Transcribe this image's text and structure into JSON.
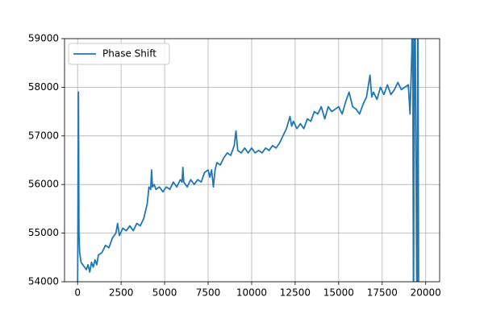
{
  "chart_data": {
    "type": "line",
    "x": [
      0,
      20,
      50,
      80,
      120,
      200,
      300,
      400,
      500,
      600,
      700,
      800,
      900,
      1000,
      1100,
      1200,
      1400,
      1600,
      1800,
      2000,
      2200,
      2300,
      2400,
      2600,
      2800,
      3000,
      3200,
      3400,
      3600,
      3800,
      4000,
      4100,
      4200,
      4250,
      4300,
      4400,
      4500,
      4700,
      4900,
      5100,
      5300,
      5500,
      5700,
      5900,
      6000,
      6050,
      6100,
      6300,
      6500,
      6700,
      6900,
      7100,
      7300,
      7500,
      7600,
      7700,
      7800,
      7900,
      8000,
      8200,
      8400,
      8600,
      8800,
      9000,
      9100,
      9200,
      9400,
      9600,
      9800,
      10000,
      10200,
      10400,
      10600,
      10800,
      11000,
      11200,
      11400,
      11600,
      11800,
      12000,
      12200,
      12300,
      12400,
      12600,
      12800,
      13000,
      13200,
      13400,
      13600,
      13800,
      14000,
      14200,
      14400,
      14600,
      14800,
      15000,
      15200,
      15400,
      15600,
      15800,
      16000,
      16200,
      16400,
      16600,
      16800,
      16900,
      17000,
      17200,
      17400,
      17600,
      17800,
      18000,
      18200,
      18400,
      18600,
      18800,
      19000,
      19100,
      19200,
      19250,
      19300,
      19350,
      19400,
      19500,
      19550,
      19600
    ],
    "series": [
      {
        "name": "Phase Shift",
        "color": "#1f77b4",
        "values": [
          53800,
          55200,
          57900,
          55000,
          54600,
          54400,
          54350,
          54300,
          54250,
          54350,
          54200,
          54400,
          54300,
          54450,
          54350,
          54550,
          54600,
          54750,
          54700,
          54900,
          55000,
          55200,
          54950,
          55100,
          55050,
          55150,
          55050,
          55200,
          55150,
          55300,
          55600,
          55950,
          55900,
          56300,
          55950,
          56000,
          55900,
          55950,
          55850,
          55950,
          55900,
          56050,
          55950,
          56100,
          56050,
          56350,
          56050,
          55950,
          56100,
          56000,
          56100,
          56050,
          56250,
          56300,
          56150,
          56300,
          55950,
          56300,
          56450,
          56400,
          56550,
          56650,
          56600,
          56800,
          57100,
          56700,
          56650,
          56750,
          56650,
          56750,
          56650,
          56700,
          56650,
          56750,
          56700,
          56800,
          56750,
          56850,
          57000,
          57150,
          57400,
          57200,
          57300,
          57150,
          57250,
          57150,
          57350,
          57300,
          57500,
          57450,
          57600,
          57350,
          57600,
          57500,
          57550,
          57600,
          57450,
          57700,
          57900,
          57600,
          57550,
          57450,
          57650,
          57800,
          58250,
          57800,
          57900,
          57750,
          58000,
          57850,
          58050,
          57850,
          57950,
          58100,
          57950,
          58000,
          58050,
          57450,
          58700,
          60000,
          53000,
          59500,
          59000,
          53000,
          60000,
          53000
        ]
      }
    ],
    "xlim": [
      -750,
      20800
    ],
    "ylim": [
      54000,
      59000
    ],
    "xticks": [
      0,
      2500,
      5000,
      7500,
      10000,
      12500,
      15000,
      17500,
      20000
    ],
    "yticks": [
      54000,
      55000,
      56000,
      57000,
      58000,
      59000
    ],
    "grid": true,
    "legend": "upper left"
  }
}
